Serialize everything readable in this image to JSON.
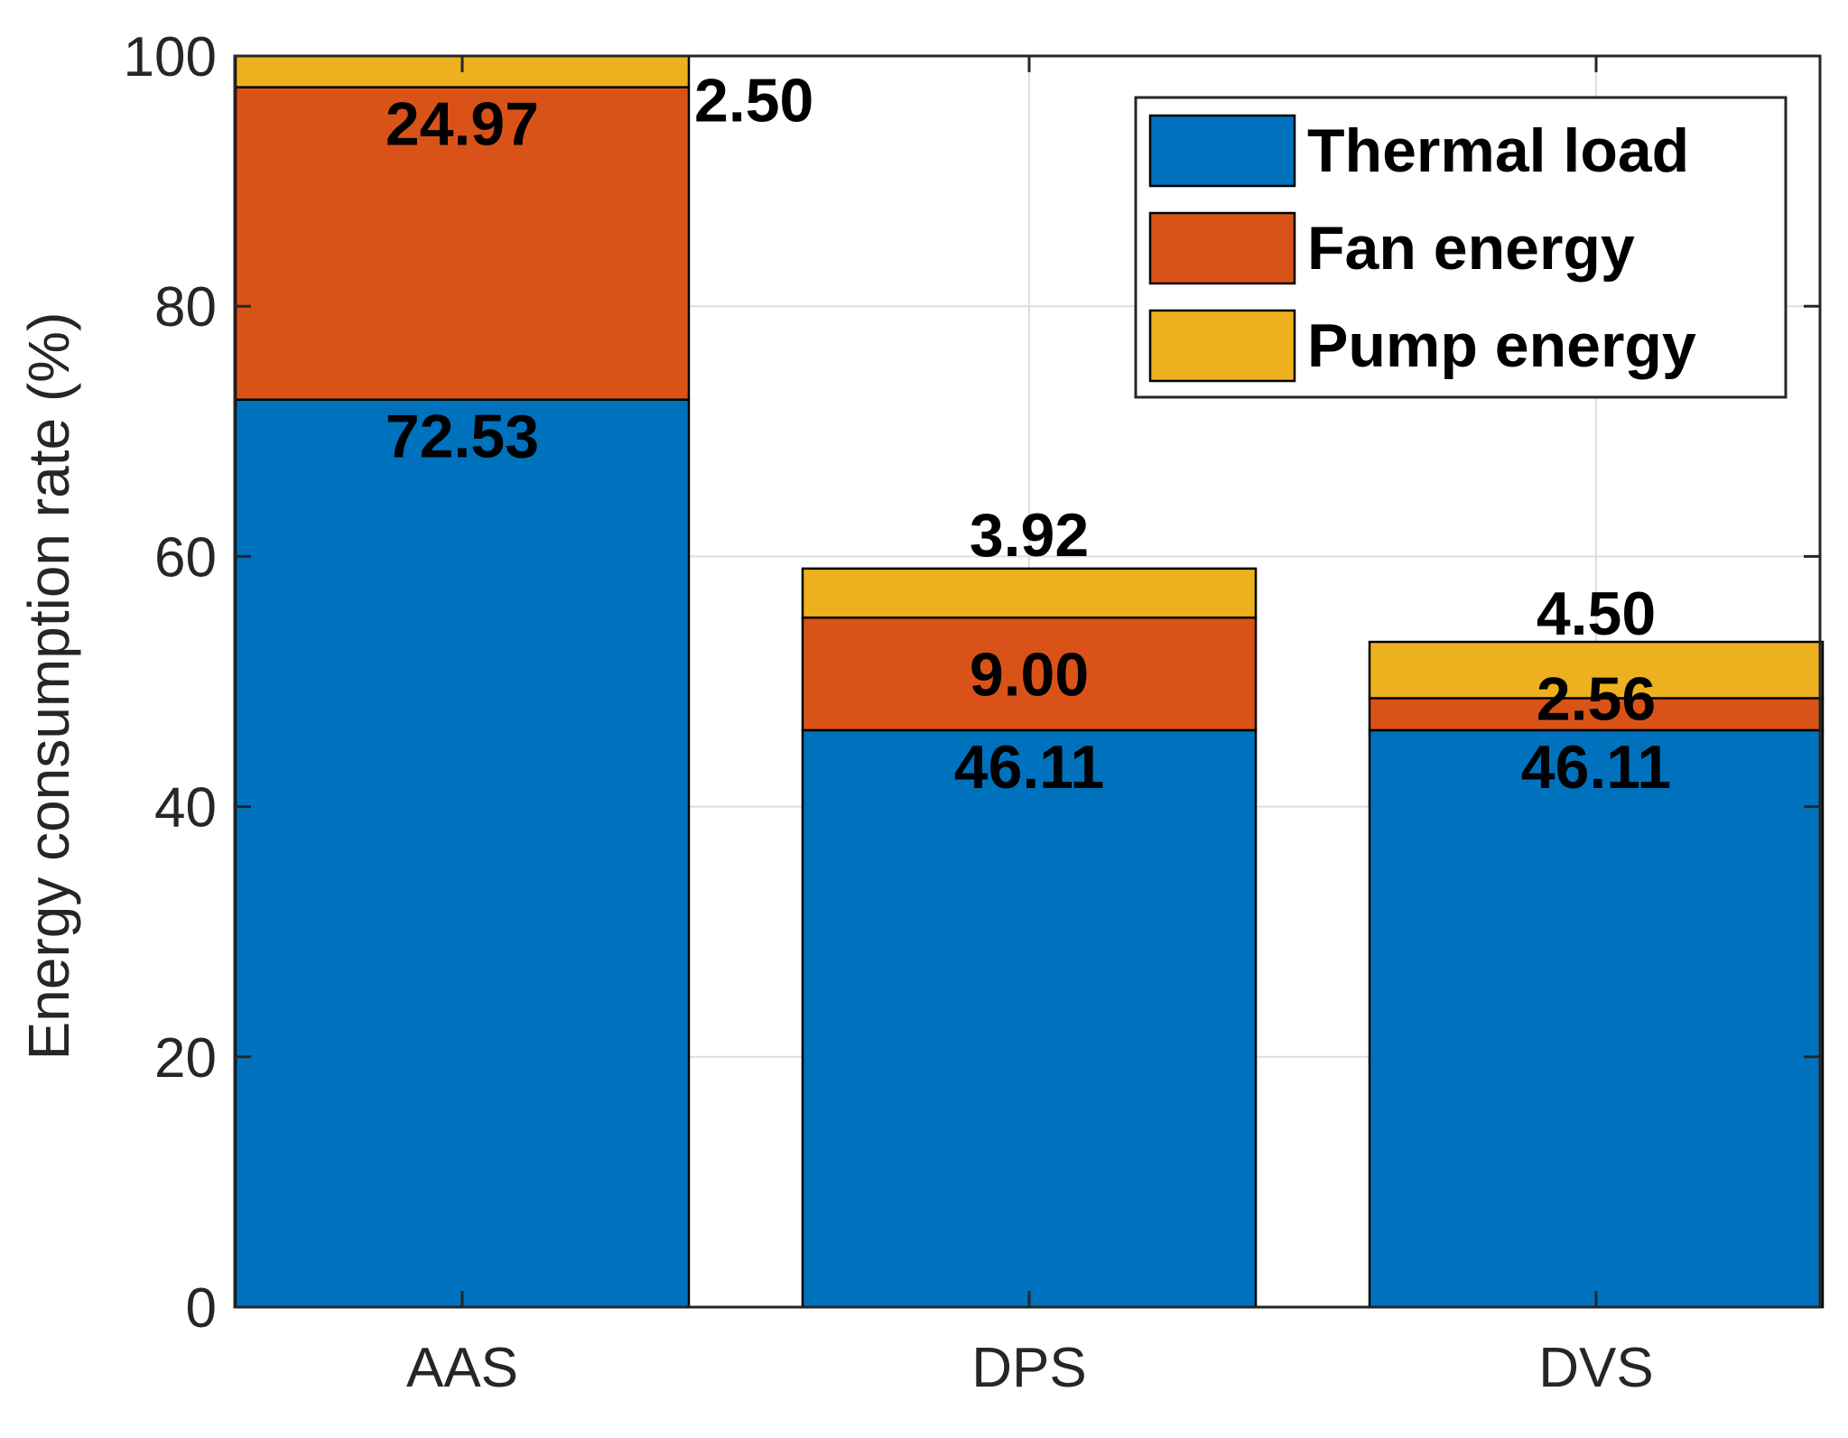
{
  "chart_data": {
    "type": "bar",
    "stacked": true,
    "title": "",
    "xlabel": "",
    "ylabel": "Energy consumption rate (%)",
    "categories": [
      "AAS",
      "DPS",
      "DVS"
    ],
    "ylim": [
      0,
      100
    ],
    "yticks": [
      0,
      20,
      40,
      60,
      80,
      100
    ],
    "ytick_labels": [
      "0",
      "20",
      "40",
      "60",
      "80",
      "100"
    ],
    "grid": true,
    "legend_position": "top-right",
    "series": [
      {
        "name": "Thermal load",
        "color": "#0072BD",
        "values": [
          72.53,
          46.11,
          46.11
        ],
        "labels": [
          "72.53",
          "46.11",
          "46.11"
        ]
      },
      {
        "name": "Fan energy",
        "color": "#D95319",
        "values": [
          24.97,
          9.0,
          2.56
        ],
        "labels": [
          "24.97",
          "9.00",
          "2.56"
        ]
      },
      {
        "name": "Pump energy",
        "color": "#EDB120",
        "values": [
          2.5,
          3.92,
          4.5
        ],
        "labels": [
          "2.50",
          "3.92",
          "4.50"
        ]
      }
    ]
  }
}
